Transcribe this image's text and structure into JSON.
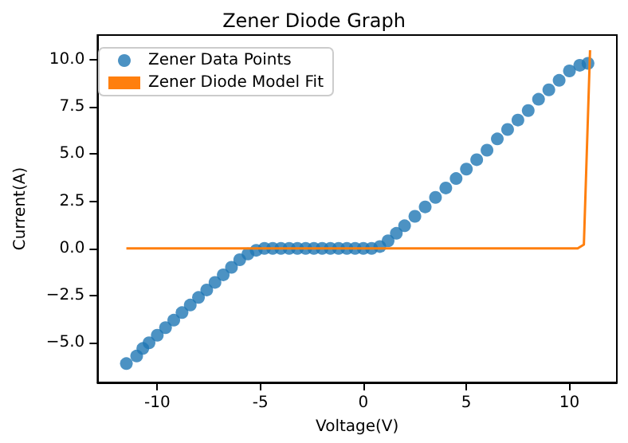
{
  "chart_data": {
    "type": "scatter",
    "title": "Zener Diode Graph",
    "xlabel": "Voltage(V)",
    "ylabel": "Current(A)",
    "xlim": [
      -12.9,
      12.3
    ],
    "ylim": [
      -7.1,
      11.3
    ],
    "xticks": [
      -10,
      -5,
      0,
      5,
      10
    ],
    "yticks": [
      {
        "value": -5,
        "label": "−5.0"
      },
      {
        "value": -2.5,
        "label": "−2.5"
      },
      {
        "value": 0,
        "label": "0.0"
      },
      {
        "value": 2.5,
        "label": "2.5"
      },
      {
        "value": 5,
        "label": "5.0"
      },
      {
        "value": 7.5,
        "label": "7.5"
      },
      {
        "value": 10,
        "label": "10.0"
      }
    ],
    "grid": false,
    "legend": "top left",
    "marker": "circle",
    "series": [
      {
        "name": "Zener Data Points",
        "color": "#1f77b4",
        "x": [
          -11.5,
          -11.0,
          -10.7,
          -10.4,
          -10.0,
          -9.6,
          -9.2,
          -8.8,
          -8.4,
          -8.0,
          -7.6,
          -7.2,
          -6.8,
          -6.4,
          -6.0,
          -5.6,
          -5.2,
          -4.8,
          -4.4,
          -4.0,
          -3.6,
          -3.2,
          -2.8,
          -2.4,
          -2.0,
          -1.6,
          -1.2,
          -0.8,
          -0.4,
          0.0,
          0.4,
          0.8,
          1.2,
          1.6,
          2.0,
          2.5,
          3.0,
          3.5,
          4.0,
          4.5,
          5.0,
          5.5,
          6.0,
          6.5,
          7.0,
          7.5,
          8.0,
          8.5,
          9.0,
          9.5,
          10.0,
          10.5,
          10.9
        ],
        "values": [
          -6.1,
          -5.7,
          -5.3,
          -5.0,
          -4.6,
          -4.2,
          -3.8,
          -3.4,
          -3.0,
          -2.6,
          -2.2,
          -1.8,
          -1.4,
          -1.0,
          -0.6,
          -0.3,
          -0.1,
          0.0,
          0.0,
          0.0,
          0.0,
          0.0,
          0.0,
          0.0,
          0.0,
          0.0,
          0.0,
          0.0,
          0.0,
          0.0,
          0.0,
          0.1,
          0.4,
          0.8,
          1.2,
          1.7,
          2.2,
          2.7,
          3.2,
          3.7,
          4.2,
          4.7,
          5.2,
          5.8,
          6.3,
          6.8,
          7.3,
          7.9,
          8.4,
          8.9,
          9.4,
          9.7,
          9.8
        ]
      },
      {
        "name": "Zener Diode Model Fit",
        "type": "line",
        "color": "#ff7f0e",
        "marker": "none",
        "x": [
          -11.5,
          10.4,
          10.7,
          11.0
        ],
        "values": [
          0,
          0,
          0.2,
          10.5
        ]
      }
    ]
  }
}
